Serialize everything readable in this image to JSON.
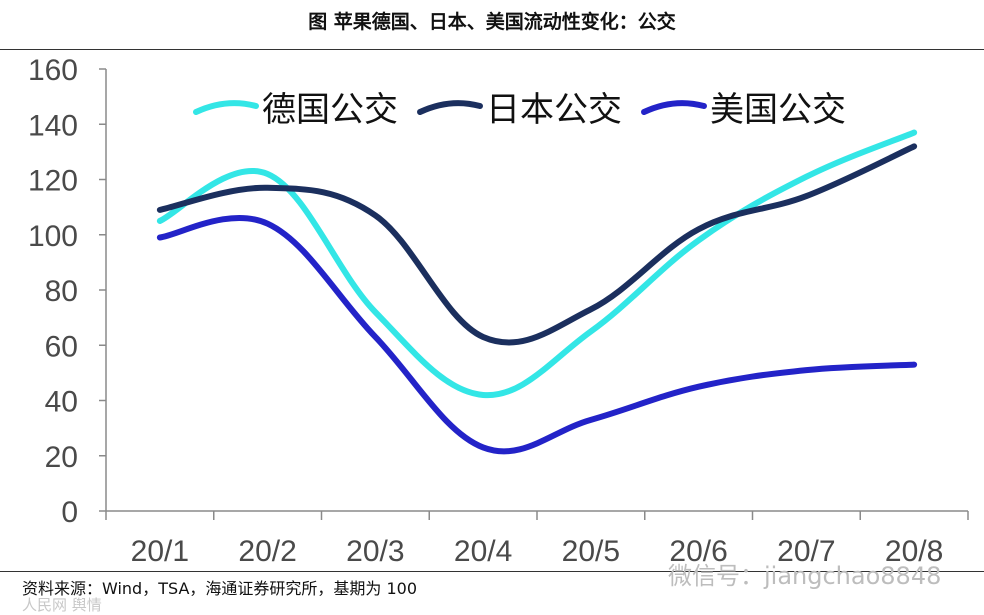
{
  "header": {
    "title": "图  苹果德国、日本、美国流动性变化：公交"
  },
  "footer": {
    "source": "资料来源：Wind，TSA，海通证券研究所，基期为 100",
    "watermark": "微信号：jiangchao8848",
    "watermark_left": "人民网 舆情"
  },
  "chart_data": {
    "type": "line",
    "title": "苹果德国、日本、美国流动性变化：公交",
    "xlabel": "",
    "ylabel": "",
    "ylim": [
      0,
      160
    ],
    "yticks": [
      0,
      20,
      40,
      60,
      80,
      100,
      120,
      140,
      160
    ],
    "categories": [
      "20/1",
      "20/2",
      "20/3",
      "20/4",
      "20/5",
      "20/6",
      "20/7",
      "20/8"
    ],
    "legend_position": "top",
    "series": [
      {
        "name": "德国公交",
        "color": "#33e6e6",
        "values": [
          105,
          122,
          72,
          42,
          65,
          98,
          121,
          137
        ]
      },
      {
        "name": "日本公交",
        "color": "#1b2f5e",
        "values": [
          109,
          117,
          107,
          63,
          73,
          102,
          114,
          132
        ]
      },
      {
        "name": "美国公交",
        "color": "#2323c8",
        "values": [
          99,
          104,
          63,
          23,
          33,
          45,
          51,
          53
        ]
      }
    ]
  }
}
